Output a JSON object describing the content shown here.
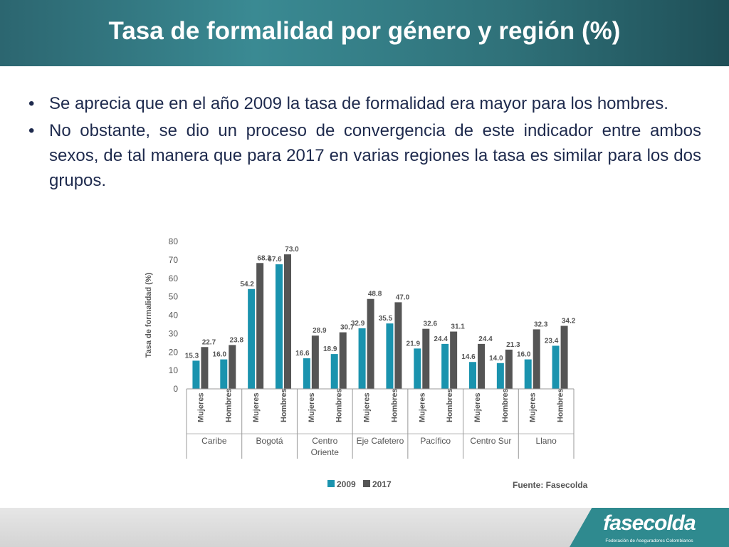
{
  "header": {
    "title": "Tasa de formalidad por género y región (%)"
  },
  "bullets": [
    "Se aprecia que en el año 2009 la tasa de formalidad era mayor para los hombres.",
    "No obstante, se dio un proceso de convergencia de este indicador entre ambos sexos, de tal manera que para 2017 en varias regiones la tasa es similar para los dos grupos."
  ],
  "chart_data": {
    "type": "bar",
    "ylabel": "Tasa de formalidad (%)",
    "ylim": [
      0,
      80
    ],
    "yticks": [
      0,
      10,
      20,
      30,
      40,
      50,
      60,
      70,
      80
    ],
    "groups": [
      "Caribe",
      "Bogotá",
      "Centro Oriente",
      "Eje Cafetero",
      "Pacífico",
      "Centro Sur",
      "Llano"
    ],
    "subcategories": [
      "Mujeres",
      "Hombres"
    ],
    "series": [
      {
        "name": "2009",
        "color": "#1a93ae",
        "values": [
          15.3,
          16.0,
          54.2,
          67.6,
          16.6,
          18.9,
          32.9,
          35.5,
          21.9,
          24.4,
          14.6,
          14.0,
          16.0,
          23.4
        ]
      },
      {
        "name": "2017",
        "color": "#555555",
        "values": [
          22.7,
          23.8,
          68.3,
          73.0,
          28.9,
          30.7,
          48.8,
          47.0,
          32.6,
          31.1,
          24.4,
          21.3,
          32.3,
          34.2
        ]
      }
    ],
    "legend_position": "bottom-left",
    "source": "Fuente:  Fasecolda"
  },
  "footer": {
    "logo": "fasecolda",
    "logo_sub": "Federación de Aseguradores Colombianos"
  }
}
